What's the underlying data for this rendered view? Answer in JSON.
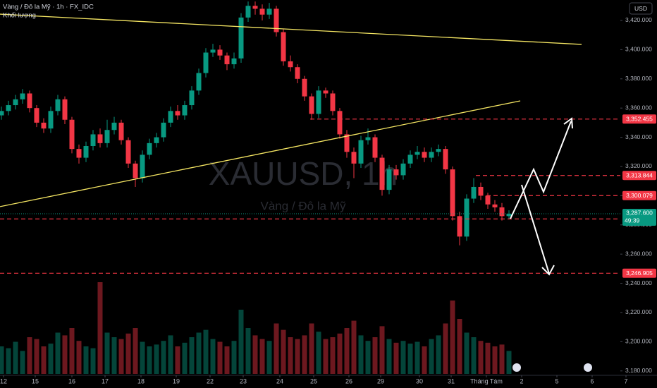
{
  "chart_data": {
    "type": "candlestick",
    "title": "Vàng / Đô la Mỹ · 1h · FX_IDC",
    "volume_label": "Khối lượng",
    "watermark": "XAUUSD, 1h",
    "watermark_subtitle": "Vàng / Đô la Mỹ",
    "currency": "USD",
    "up_color": "#089981",
    "down_color": "#f23645",
    "grid": false,
    "xlim": [
      -0.2,
      93
    ],
    "ylim": [
      3177,
      3434
    ],
    "yticks": [
      {
        "value": 3180,
        "label": "3,180.000"
      },
      {
        "value": 3200,
        "label": "3,200.000"
      },
      {
        "value": 3220,
        "label": "3,220.000"
      },
      {
        "value": 3240,
        "label": "3,240.000"
      },
      {
        "value": 3260,
        "label": "3,260.000"
      },
      {
        "value": 3280,
        "label": "3,280.000"
      },
      {
        "value": 3300,
        "label": "3,300.000"
      },
      {
        "value": 3320,
        "label": "3,320.000"
      },
      {
        "value": 3340,
        "label": "3,340.000"
      },
      {
        "value": 3360,
        "label": "3,360.000"
      },
      {
        "value": 3380,
        "label": "3,380.000"
      },
      {
        "value": 3400,
        "label": "3,400.000"
      },
      {
        "value": 3420,
        "label": "3,420.000"
      }
    ],
    "xticks": [
      {
        "value": 0.3,
        "label": "12"
      },
      {
        "value": 4.8,
        "label": "15"
      },
      {
        "value": 10,
        "label": "16"
      },
      {
        "value": 14.7,
        "label": "17"
      },
      {
        "value": 19.8,
        "label": "18"
      },
      {
        "value": 24.8,
        "label": "19"
      },
      {
        "value": 29.6,
        "label": "22"
      },
      {
        "value": 34.3,
        "label": "23"
      },
      {
        "value": 39.5,
        "label": "24"
      },
      {
        "value": 44.3,
        "label": "25"
      },
      {
        "value": 49.3,
        "label": "26"
      },
      {
        "value": 53.8,
        "label": "29"
      },
      {
        "value": 59.3,
        "label": "30"
      },
      {
        "value": 63.8,
        "label": "31"
      },
      {
        "value": 68.8,
        "label": "Tháng Tám"
      },
      {
        "value": 73.8,
        "label": "2"
      },
      {
        "value": 78.8,
        "label": "5"
      },
      {
        "value": 83.8,
        "label": "6"
      },
      {
        "value": 88.6,
        "label": "7"
      }
    ],
    "open": [
      3355,
      3358,
      3362,
      3366,
      3370,
      3360,
      3350,
      3346,
      3358,
      3366,
      3352,
      3332,
      3326,
      3334,
      3342,
      3336,
      3345,
      3350,
      3338,
      3322,
      3312,
      3328,
      3336,
      3340,
      3350,
      3358,
      3355,
      3362,
      3372,
      3384,
      3398,
      3400,
      3396,
      3390,
      3394,
      3422,
      3430,
      3428,
      3424,
      3428,
      3412,
      3392,
      3388,
      3380,
      3368,
      3356,
      3372,
      3370,
      3358,
      3342,
      3330,
      3322,
      3338,
      3340,
      3326,
      3304,
      3318,
      3314,
      3322,
      3328,
      3330,
      3326,
      3330,
      3332,
      3318,
      3286,
      3272,
      3298,
      3306,
      3300,
      3294,
      3292,
      3286
    ],
    "high": [
      3361,
      3365,
      3369,
      3373,
      3372,
      3362,
      3353,
      3361,
      3369,
      3368,
      3354,
      3335,
      3337,
      3345,
      3346,
      3352,
      3354,
      3352,
      3340,
      3324,
      3331,
      3339,
      3343,
      3353,
      3361,
      3362,
      3365,
      3375,
      3387,
      3401,
      3404,
      3403,
      3398,
      3398,
      3425,
      3433,
      3433,
      3431,
      3432,
      3430,
      3414,
      3396,
      3390,
      3382,
      3370,
      3375,
      3374,
      3372,
      3360,
      3345,
      3333,
      3341,
      3346,
      3342,
      3328,
      3321,
      3321,
      3325,
      3331,
      3334,
      3333,
      3333,
      3335,
      3334,
      3320,
      3289,
      3301,
      3312,
      3309,
      3302,
      3297,
      3295,
      3290
    ],
    "low": [
      3352,
      3355,
      3359,
      3363,
      3357,
      3347,
      3343,
      3343,
      3355,
      3349,
      3329,
      3322,
      3323,
      3331,
      3333,
      3333,
      3342,
      3335,
      3319,
      3306,
      3309,
      3325,
      3333,
      3337,
      3347,
      3352,
      3352,
      3359,
      3369,
      3381,
      3395,
      3393,
      3386,
      3387,
      3391,
      3419,
      3424,
      3420,
      3421,
      3409,
      3389,
      3385,
      3377,
      3365,
      3352,
      3353,
      3367,
      3355,
      3339,
      3326,
      3312,
      3319,
      3335,
      3323,
      3300,
      3301,
      3311,
      3311,
      3319,
      3325,
      3323,
      3323,
      3327,
      3315,
      3283,
      3266,
      3269,
      3295,
      3297,
      3291,
      3289,
      3283,
      3284
    ],
    "close": [
      3358,
      3362,
      3366,
      3370,
      3360,
      3350,
      3346,
      3358,
      3366,
      3352,
      3332,
      3326,
      3334,
      3342,
      3336,
      3345,
      3350,
      3338,
      3322,
      3312,
      3328,
      3336,
      3340,
      3350,
      3358,
      3355,
      3362,
      3372,
      3384,
      3398,
      3400,
      3396,
      3390,
      3394,
      3422,
      3430,
      3428,
      3424,
      3428,
      3412,
      3392,
      3388,
      3380,
      3368,
      3356,
      3372,
      3370,
      3358,
      3342,
      3330,
      3322,
      3338,
      3340,
      3326,
      3304,
      3318,
      3314,
      3322,
      3328,
      3330,
      3326,
      3330,
      3332,
      3318,
      3286,
      3272,
      3298,
      3306,
      3300,
      3294,
      3292,
      3286,
      3287.6
    ],
    "volume": [
      30,
      28,
      35,
      25,
      40,
      38,
      30,
      33,
      45,
      42,
      50,
      36,
      30,
      28,
      100,
      45,
      40,
      38,
      44,
      50,
      35,
      30,
      32,
      36,
      42,
      30,
      34,
      40,
      45,
      48,
      38,
      35,
      30,
      36,
      70,
      50,
      42,
      38,
      36,
      55,
      48,
      40,
      38,
      42,
      55,
      46,
      38,
      40,
      44,
      50,
      58,
      42,
      36,
      40,
      52,
      38,
      34,
      36,
      33,
      35,
      30,
      38,
      42,
      55,
      80,
      60,
      45,
      40,
      36,
      34,
      30,
      32,
      25
    ],
    "trendlines": [
      {
        "x": [
          -0.2,
          82.3
        ],
        "y": [
          3424.3,
          3403.6
        ],
        "color": "#f5e663"
      },
      {
        "x": [
          -0.2,
          73.6
        ],
        "y": [
          3292.5,
          3364.9
        ],
        "color": "#f5e663"
      }
    ],
    "levels": [
      {
        "value": 3352.455,
        "label": "3,352.455",
        "from": 43.8
      },
      {
        "value": 3313.844,
        "label": "3,313.844",
        "from": 67.3
      },
      {
        "value": 3300.079,
        "label": "3,300.079",
        "from": 68.8
      },
      {
        "value": 3284.077,
        "label": "3,284.077",
        "from": -0.2
      },
      {
        "value": 3246.905,
        "label": "3,246.905",
        "from": -0.2
      }
    ],
    "level_color": "#f23645",
    "last_price": {
      "value": 3287.6,
      "label": "3,287.600"
    },
    "countdown": "49:39"
  }
}
